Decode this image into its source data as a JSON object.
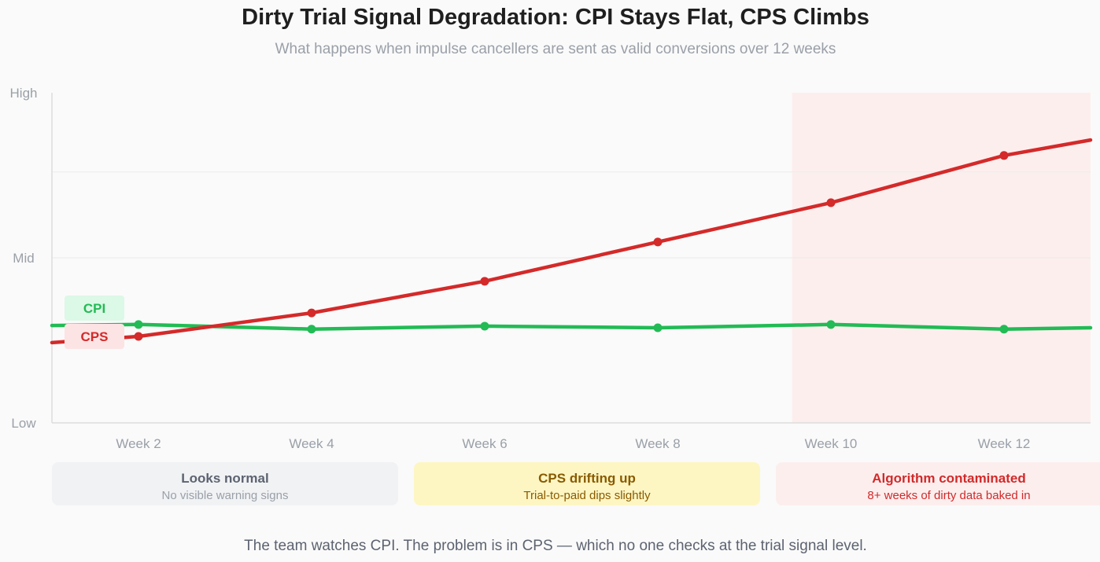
{
  "chart_data": {
    "type": "line",
    "title": "Dirty Trial Signal Degradation: CPI Stays Flat, CPS Climbs",
    "subtitle": "What happens when impulse cancellers are sent as valid conversions over 12 weeks",
    "x": [
      1,
      2,
      4,
      6,
      8,
      10,
      12,
      13
    ],
    "xticks": [
      2,
      4,
      6,
      8,
      10,
      12
    ],
    "xtick_labels": [
      "Week 2",
      "Week 4",
      "Week 6",
      "Week 8",
      "Week 10",
      "Week 12"
    ],
    "xlim": [
      1,
      13
    ],
    "ylim": [
      0,
      100
    ],
    "yticks": [
      0,
      50,
      100
    ],
    "ytick_labels": [
      "Low",
      "Mid",
      "High"
    ],
    "grid_y": [
      50,
      76
    ],
    "highlight_region": {
      "x_start": 9.55,
      "x_end": 13,
      "color": "#fdeeee"
    },
    "series": [
      {
        "name": "CPI",
        "color": "#22bb55",
        "label_bg": "#dcf8e6",
        "values": [
          29.5,
          29.8,
          28.4,
          29.3,
          28.8,
          29.8,
          28.4,
          28.8
        ],
        "markers": [
          2,
          4,
          6,
          8,
          10,
          12
        ]
      },
      {
        "name": "CPS",
        "color": "#d42a2a",
        "label_bg": "#fce4e4",
        "values": [
          24.3,
          26.2,
          33.3,
          42.9,
          54.8,
          66.7,
          81.0,
          85.7
        ],
        "markers": [
          2,
          4,
          6,
          8,
          10,
          12
        ]
      }
    ]
  },
  "phases": [
    {
      "title": "Looks normal",
      "subtitle": "No visible warning signs"
    },
    {
      "title": "CPS drifting up",
      "subtitle": "Trial-to-paid dips slightly"
    },
    {
      "title": "Algorithm contaminated",
      "subtitle": "8+ weeks of dirty data baked in"
    }
  ],
  "footnote": "The team watches CPI. The problem is in CPS — which no one checks at the trial signal level."
}
